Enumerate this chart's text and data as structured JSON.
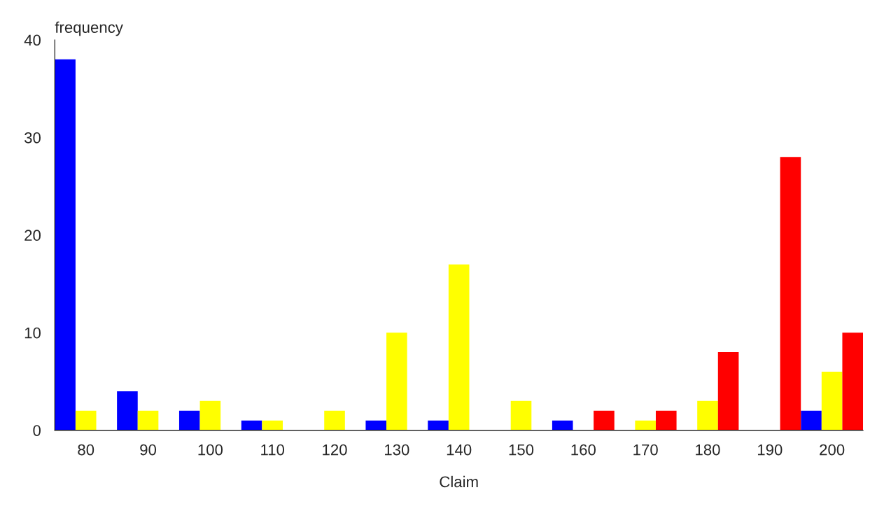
{
  "chart_data": {
    "type": "bar",
    "xlabel": "Claim",
    "ylabel": "frequency",
    "categories": [
      "80",
      "90",
      "100",
      "110",
      "120",
      "130",
      "140",
      "150",
      "160",
      "170",
      "180",
      "190",
      "200"
    ],
    "series": [
      {
        "color": "#0000ff",
        "values": [
          38,
          4,
          2,
          1,
          0,
          1,
          1,
          0,
          1,
          0,
          0,
          0,
          2
        ]
      },
      {
        "color": "#ffff00",
        "values": [
          2,
          2,
          3,
          1,
          2,
          10,
          17,
          3,
          0,
          1,
          3,
          0,
          6
        ]
      },
      {
        "color": "#ff0000",
        "values": [
          0,
          0,
          0,
          0,
          0,
          0,
          0,
          0,
          2,
          2,
          8,
          28,
          10
        ]
      }
    ],
    "ylim": [
      0,
      40
    ],
    "yticks": [
      0,
      10,
      20,
      30,
      40
    ],
    "grid": false,
    "legend": false
  }
}
